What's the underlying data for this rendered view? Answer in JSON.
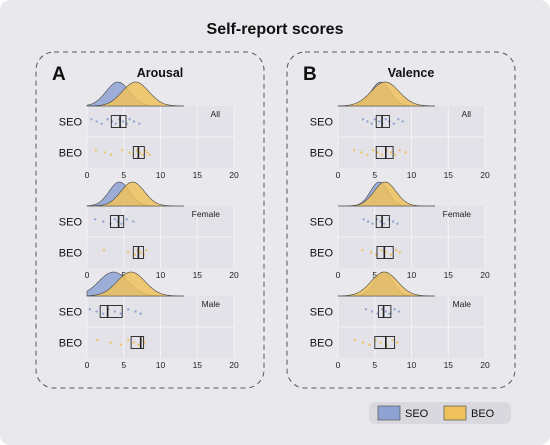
{
  "figure": {
    "title": "Self-report scores",
    "background": "#e9e9ed",
    "plot_background": "#e2e2e8",
    "colors": {
      "SEO": "#8ea3d2",
      "BEO": "#efc15c"
    },
    "legend": {
      "placement": "bottom-right",
      "items": [
        "SEO",
        "BEO"
      ]
    }
  },
  "chart_data": [
    {
      "type": "raincloud-boxplot",
      "panel_label": "A",
      "title": "Arousal",
      "x_ticks": [
        "0",
        "5",
        "10",
        "15",
        "20"
      ],
      "xlim": [
        0,
        20
      ],
      "subplots": [
        {
          "label": "All",
          "categories": [
            "SEO",
            "BEO"
          ],
          "box": {
            "SEO": {
              "q1": 3.3,
              "median": 4.5,
              "q3": 5.3
            },
            "BEO": {
              "q1": 6.3,
              "median": 7.0,
              "q3": 7.8
            }
          },
          "points": {
            "SEO": [
              0.6,
              1.3,
              2.0,
              2.8,
              3.4,
              3.9,
              4.4,
              4.9,
              5.4,
              5.8,
              6.4,
              7.1
            ],
            "BEO": [
              1.2,
              2.4,
              3.3,
              4.8,
              5.8,
              6.3,
              6.8,
              7.2,
              7.6,
              7.9,
              8.2,
              8.5
            ]
          },
          "density": {
            "SEO": {
              "peak": 4.2,
              "spread": 1.6
            },
            "BEO": {
              "peak": 6.6,
              "spread": 1.8
            }
          }
        },
        {
          "label": "Female",
          "categories": [
            "SEO",
            "BEO"
          ],
          "box": {
            "SEO": {
              "q1": 3.2,
              "median": 4.3,
              "q3": 5.0
            },
            "BEO": {
              "q1": 6.3,
              "median": 7.0,
              "q3": 7.7
            }
          },
          "points": {
            "SEO": [
              1.1,
              2.2,
              3.2,
              3.8,
              4.2,
              4.7,
              5.4,
              6.3
            ],
            "BEO": [
              2.3,
              5.6,
              6.5,
              6.9,
              7.3,
              7.7,
              8.1
            ]
          },
          "density": {
            "SEO": {
              "peak": 4.4,
              "spread": 1.4
            },
            "BEO": {
              "peak": 6.2,
              "spread": 1.6
            }
          }
        },
        {
          "label": "Male",
          "categories": [
            "SEO",
            "BEO"
          ],
          "box": {
            "SEO": {
              "q1": 1.8,
              "median": 2.8,
              "q3": 4.8
            },
            "BEO": {
              "q1": 6.0,
              "median": 7.3,
              "q3": 7.7
            }
          },
          "points": {
            "SEO": [
              0.4,
              1.3,
              2.2,
              2.9,
              3.8,
              4.6,
              5.6,
              6.6,
              7.3
            ],
            "BEO": [
              1.4,
              3.2,
              4.6,
              5.6,
              6.4,
              7.0,
              7.4,
              7.8
            ]
          },
          "density": {
            "SEO": {
              "peak": 3.6,
              "spread": 2.0
            },
            "BEO": {
              "peak": 6.0,
              "spread": 1.9
            }
          }
        }
      ]
    },
    {
      "type": "raincloud-boxplot",
      "panel_label": "B",
      "title": "Valence",
      "x_ticks": [
        "0",
        "5",
        "10",
        "15",
        "20"
      ],
      "xlim": [
        0,
        20
      ],
      "subplots": [
        {
          "label": "All",
          "categories": [
            "SEO",
            "BEO"
          ],
          "box": {
            "SEO": {
              "q1": 5.2,
              "median": 6.0,
              "q3": 7.0
            },
            "BEO": {
              "q1": 5.2,
              "median": 6.5,
              "q3": 7.5
            }
          },
          "points": {
            "SEO": [
              3.4,
              4.0,
              4.6,
              5.0,
              5.6,
              6.0,
              6.5,
              7.0,
              7.6,
              8.2,
              8.8
            ],
            "BEO": [
              2.2,
              3.2,
              4.0,
              4.8,
              5.4,
              6.0,
              6.6,
              7.2,
              7.8,
              8.4,
              9.2
            ]
          },
          "density": {
            "SEO": {
              "peak": 5.8,
              "spread": 1.3
            },
            "BEO": {
              "peak": 6.4,
              "spread": 1.9
            }
          }
        },
        {
          "label": "Female",
          "categories": [
            "SEO",
            "BEO"
          ],
          "box": {
            "SEO": {
              "q1": 5.2,
              "median": 6.0,
              "q3": 7.0
            },
            "BEO": {
              "q1": 5.3,
              "median": 6.3,
              "q3": 7.5
            }
          },
          "points": {
            "SEO": [
              3.5,
              4.1,
              4.7,
              5.3,
              5.8,
              6.3,
              6.9,
              7.5,
              8.1
            ],
            "BEO": [
              3.3,
              4.5,
              5.2,
              5.9,
              6.5,
              7.2,
              7.9,
              8.4
            ]
          },
          "density": {
            "SEO": {
              "peak": 5.6,
              "spread": 1.2
            },
            "BEO": {
              "peak": 6.4,
              "spread": 1.5
            }
          }
        },
        {
          "label": "Male",
          "categories": [
            "SEO",
            "BEO"
          ],
          "box": {
            "SEO": {
              "q1": 5.5,
              "median": 6.2,
              "q3": 7.2
            },
            "BEO": {
              "q1": 5.0,
              "median": 6.5,
              "q3": 7.7
            }
          },
          "points": {
            "SEO": [
              3.8,
              4.6,
              5.4,
              6.0,
              6.5,
              7.0,
              7.7,
              8.3
            ],
            "BEO": [
              2.3,
              3.4,
              4.3,
              5.1,
              5.8,
              6.6,
              7.4,
              8.1
            ]
          },
          "density": {
            "SEO": {
              "peak": 6.2,
              "spread": 1.2
            },
            "BEO": {
              "peak": 6.3,
              "spread": 1.8
            }
          }
        }
      ]
    }
  ]
}
